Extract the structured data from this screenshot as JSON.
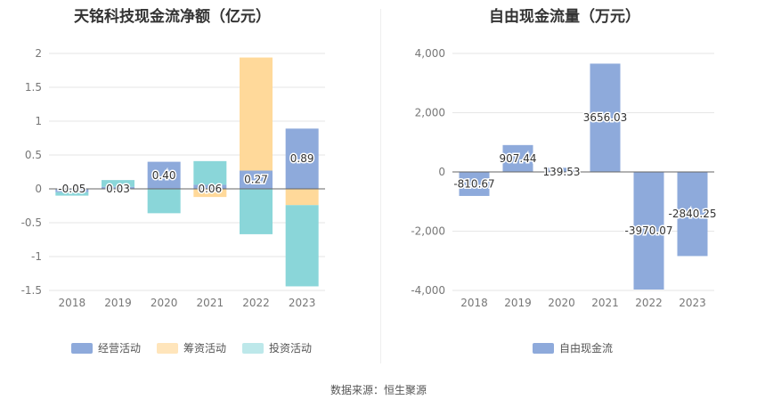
{
  "source_note": "数据来源：恒生聚源",
  "chart_data": [
    {
      "type": "bar",
      "stacked": true,
      "title": "天铭科技现金流净额（亿元）",
      "categories": [
        "2018",
        "2019",
        "2020",
        "2021",
        "2022",
        "2023"
      ],
      "ylim": [
        -1.5,
        2
      ],
      "yticks": [
        "2",
        "1.5",
        "1",
        "0.5",
        "0",
        "-0.5",
        "-1",
        "-1.5"
      ],
      "ytick_values": [
        2,
        1.5,
        1,
        0.5,
        0,
        -0.5,
        -1,
        -1.5
      ],
      "grid": true,
      "legend_position": "bottom",
      "series": [
        {
          "name": "经营活动",
          "color": "#8eaadb",
          "values": [
            -0.05,
            0.03,
            0.4,
            0.06,
            0.27,
            0.89
          ]
        },
        {
          "name": "筹资活动",
          "color": "#ffd99a",
          "values": [
            0.0,
            0.0,
            0.0,
            -0.12,
            1.67,
            -0.24
          ]
        },
        {
          "name": "投资活动",
          "color": "#8ad6d9",
          "values": [
            -0.05,
            0.1,
            -0.36,
            0.35,
            -0.67,
            -1.2
          ]
        }
      ],
      "data_labels": [
        "-0.05",
        "0.03",
        "0.40",
        "0.06",
        "0.27",
        "0.89"
      ]
    },
    {
      "type": "bar",
      "title": "自由现金流量（万元）",
      "categories": [
        "2018",
        "2019",
        "2020",
        "2021",
        "2022",
        "2023"
      ],
      "ylim": [
        -4000,
        4000
      ],
      "yticks": [
        "4,000",
        "2,000",
        "0",
        "-2,000",
        "-4,000"
      ],
      "ytick_values": [
        4000,
        2000,
        0,
        -2000,
        -4000
      ],
      "grid": true,
      "legend_position": "bottom",
      "series": [
        {
          "name": "自由现金流",
          "color": "#8eaadb",
          "values": [
            -810.67,
            907.44,
            139.53,
            3656.03,
            -3970.07,
            -2840.25
          ]
        }
      ],
      "data_labels": [
        "-810.67",
        "907.44",
        "139.53",
        "3656.03",
        "-3970.07",
        "-2840.25"
      ]
    }
  ]
}
